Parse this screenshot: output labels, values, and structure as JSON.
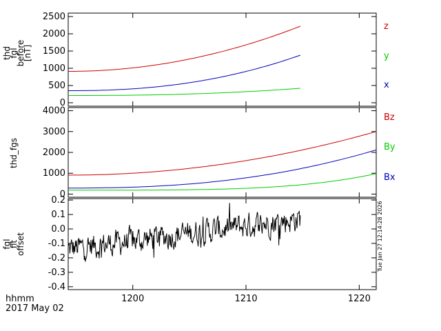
{
  "chart_data": [
    {
      "type": "line",
      "ylabel_lines": [
        "thd",
        "fgl",
        "before",
        "[nT]"
      ],
      "ylim": [
        -100,
        2600
      ],
      "yticks": [
        "0",
        "500",
        "1000",
        "1500",
        "2000",
        "2500"
      ],
      "yticks_values": [
        0,
        500,
        1000,
        1500,
        2000,
        2500
      ],
      "series": [
        {
          "name": "z",
          "color": "#cc0000",
          "x_start": 1194.3,
          "x_end": 1214.8,
          "y_start": 910,
          "y_end": 2220,
          "curve": 2.0
        },
        {
          "name": "y",
          "color": "#00cc00",
          "x_start": 1194.3,
          "x_end": 1214.8,
          "y_start": 210,
          "y_end": 420,
          "curve": 2.4
        },
        {
          "name": "x",
          "color": "#0000bb",
          "x_start": 1194.3,
          "x_end": 1214.8,
          "y_start": 350,
          "y_end": 1380,
          "curve": 2.3
        }
      ]
    },
    {
      "type": "line",
      "ylabel": "thd_fgs",
      "ylim": [
        -150,
        4150
      ],
      "yticks": [
        "0",
        "1000",
        "2000",
        "3000",
        "4000"
      ],
      "yticks_values": [
        0,
        1000,
        2000,
        3000,
        4000
      ],
      "series": [
        {
          "name": "Bz",
          "color": "#cc0000",
          "x_start": 1194.3,
          "x_end": 1221.5,
          "y_start": 910,
          "y_end": 3000,
          "curve": 2.0
        },
        {
          "name": "By",
          "color": "#00cc00",
          "x_start": 1194.3,
          "x_end": 1221.5,
          "y_start": 190,
          "y_end": 980,
          "curve": 4.0
        },
        {
          "name": "Bx",
          "color": "#0000bb",
          "x_start": 1194.3,
          "x_end": 1221.5,
          "y_start": 290,
          "y_end": 2120,
          "curve": 2.4
        }
      ]
    },
    {
      "type": "line",
      "ylabel_lines": [
        "fgl",
        "fit",
        "offset"
      ],
      "ylim": [
        -0.42,
        0.21
      ],
      "yticks": [
        "-0.4",
        "-0.3",
        "-0.2",
        "-0.1",
        "0.0",
        "0.1",
        "0.2"
      ],
      "yticks_values": [
        -0.4,
        -0.3,
        -0.2,
        -0.1,
        0.0,
        0.1,
        0.2
      ],
      "series": [
        {
          "name": "offset",
          "color": "#000000",
          "x_start": 1194.3,
          "x_end": 1214.8,
          "y_start": -0.14,
          "y_end": 0.07,
          "noise": 0.075,
          "samples": 420
        }
      ]
    }
  ],
  "x_axis": {
    "xlim": [
      1194.3,
      1221.5
    ],
    "ticks": [
      "1200",
      "1210",
      "1220"
    ],
    "tick_values": [
      1200,
      1210,
      1220
    ],
    "label_line1": "hhmm",
    "label_line2": "2017 May 02"
  },
  "timestamp": "Tue Jan 27 12:14:28 2026"
}
